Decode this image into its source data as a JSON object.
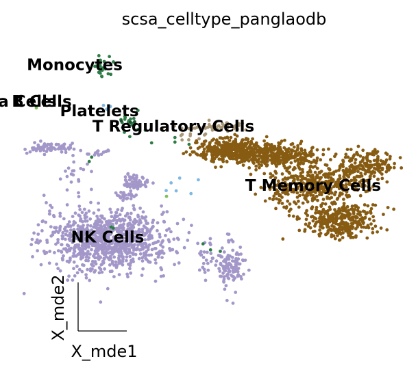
{
  "chart_data": {
    "type": "scatter",
    "title": "scsa_celltype_panglaodb",
    "xlabel": "X_mde1",
    "ylabel": "X_mde2",
    "grid": false,
    "legend": "on data",
    "seed": 7,
    "clusters": [
      {
        "label": "NK Cells",
        "color": "#a397c9",
        "label_at": [
          -2.2,
          -1.9
        ],
        "blobs": [
          {
            "cx": -2.2,
            "cy": -2.0,
            "sx": 0.75,
            "sy": 0.8,
            "n": 950
          },
          {
            "cx": -3.6,
            "cy": 2.8,
            "sx": 0.35,
            "sy": 0.12,
            "n": 70
          },
          {
            "cx": -2.4,
            "cy": 2.6,
            "sx": 0.1,
            "sy": 0.1,
            "n": 14
          },
          {
            "cx": -1.5,
            "cy": 1.0,
            "sx": 0.15,
            "sy": 0.2,
            "n": 60
          },
          {
            "cx": -1.8,
            "cy": 0.3,
            "sx": 0.15,
            "sy": 0.1,
            "n": 22
          },
          {
            "cx": -3.1,
            "cy": 1.6,
            "sx": 0.2,
            "sy": 0.5,
            "n": 20
          },
          {
            "cx": 0.8,
            "cy": -3.4,
            "sx": 0.15,
            "sy": 0.6,
            "n": 110
          },
          {
            "cx": 0.2,
            "cy": -2.8,
            "sx": 0.1,
            "sy": 0.6,
            "n": 24
          }
        ]
      },
      {
        "label": "T Memory Cells",
        "color": "#875c12",
        "label_at": [
          2.8,
          0.8
        ],
        "blobs": [
          {
            "cx": 0.8,
            "cy": 2.7,
            "sx": 0.45,
            "sy": 0.3,
            "n": 380
          },
          {
            "cx": 1.9,
            "cy": 2.4,
            "sx": 0.5,
            "sy": 0.3,
            "n": 340
          },
          {
            "cx": 2.9,
            "cy": 0.9,
            "sx": 0.55,
            "sy": 0.45,
            "n": 360
          },
          {
            "cx": 3.4,
            "cy": -1.0,
            "sx": 0.45,
            "sy": 0.5,
            "n": 320
          },
          {
            "cx": 4.1,
            "cy": 1.9,
            "sx": 0.35,
            "sy": 0.35,
            "n": 170
          },
          {
            "cx": 2.1,
            "cy": 0.6,
            "sx": 0.2,
            "sy": 0.5,
            "n": 60
          }
        ]
      },
      {
        "label": "T Regulatory Cells",
        "color": "#a99878",
        "label_at": [
          -0.6,
          3.9
        ],
        "blobs": [
          {
            "cx": 0.4,
            "cy": 3.9,
            "sx": 0.4,
            "sy": 0.12,
            "n": 45
          },
          {
            "cx": -0.2,
            "cy": 3.5,
            "sx": 0.2,
            "sy": 0.15,
            "n": 10
          }
        ]
      },
      {
        "label": "Monocytes",
        "color": "#2f7d46",
        "label_at": [
          -3.0,
          7.1
        ],
        "blobs": [
          {
            "cx": -2.3,
            "cy": 7.1,
            "sx": 0.1,
            "sy": 0.35,
            "n": 22
          },
          {
            "cx": -1.7,
            "cy": 4.3,
            "sx": 0.12,
            "sy": 0.2,
            "n": 14
          },
          {
            "cx": -1.4,
            "cy": 3.4,
            "sx": 0.15,
            "sy": 0.3,
            "n": 4
          },
          {
            "cx": -0.5,
            "cy": 3.3,
            "sx": 0.2,
            "sy": 0.2,
            "n": 3
          },
          {
            "cx": 0.2,
            "cy": -2.3,
            "sx": 0.1,
            "sy": 0.3,
            "n": 3
          },
          {
            "cx": -2.6,
            "cy": 2.4,
            "sx": 0.1,
            "sy": 0.1,
            "n": 2
          },
          {
            "cx": -2.1,
            "cy": -1.4,
            "sx": 0.1,
            "sy": 0.1,
            "n": 2
          }
        ]
      },
      {
        "label": "Platelets",
        "color": "#7fb9e3",
        "label_at": [
          -2.4,
          4.7
        ],
        "blobs": [
          {
            "cx": -0.5,
            "cy": 0.8,
            "sx": 0.3,
            "sy": 0.5,
            "n": 6
          },
          {
            "cx": -2.1,
            "cy": 4.9,
            "sx": 0.15,
            "sy": 0.15,
            "n": 3
          }
        ]
      },
      {
        "label": "B Cells",
        "color": "#1f4f30",
        "label_at": [
          -3.8,
          5.2
        ],
        "blobs": [
          {
            "cx": -1.7,
            "cy": 4.2,
            "sx": 0.1,
            "sy": 0.1,
            "n": 3
          }
        ]
      },
      {
        "label": "Plasma Cells",
        "color": "#7fbf5a",
        "label_at": [
          -4.8,
          5.2
        ],
        "blobs": [
          {
            "cx": -3.9,
            "cy": 4.9,
            "sx": 0.05,
            "sy": 0.05,
            "n": 1
          },
          {
            "cx": -0.8,
            "cy": 0.3,
            "sx": 0.05,
            "sy": 0.05,
            "n": 1
          }
        ]
      }
    ]
  }
}
